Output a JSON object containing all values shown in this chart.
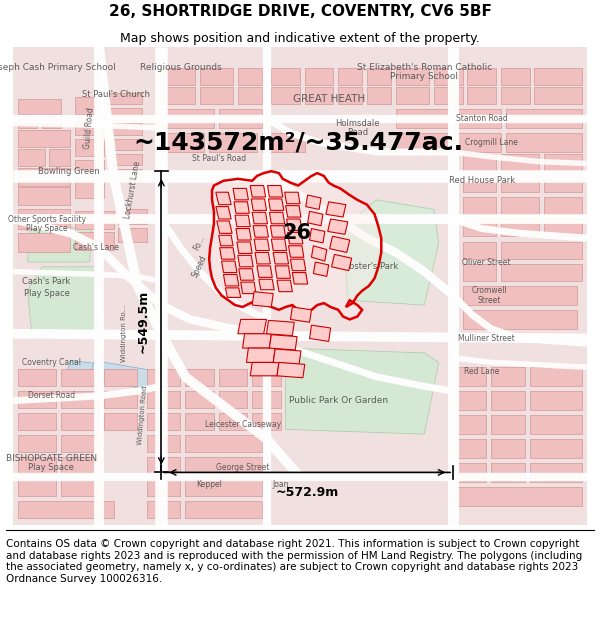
{
  "title": "26, SHORTRIDGE DRIVE, COVENTRY, CV6 5BF",
  "subtitle": "Map shows position and indicative extent of the property.",
  "area_text": "~143572m²/~35.477ac.",
  "label_number": "26",
  "dim_horizontal": "~572.9m",
  "dim_vertical": "~549.5m",
  "footer": "Contains OS data © Crown copyright and database right 2021. This information is subject to Crown copyright and database rights 2023 and is reproduced with the permission of HM Land Registry. The polygons (including the associated geometry, namely x, y co-ordinates) are subject to Crown copyright and database rights 2023 Ordnance Survey 100026316.",
  "map_bg": "#f2e8e8",
  "building_fill": "#f0c8c8",
  "building_edge": "#cc8888",
  "road_fill": "#ffffff",
  "road_edge": "#ddbbbb",
  "green_fill": "#d8ead8",
  "blue_fill": "#ccdde8",
  "red_poly_fill": "none",
  "red_poly_edge": "#dd0000",
  "red_bld_fill": "#ff8888",
  "red_bld_edge": "#cc0000",
  "arrow_color": "#000000",
  "text_color": "#000000",
  "title_fontsize": 11,
  "subtitle_fontsize": 9,
  "area_fontsize": 18,
  "label_fontsize": 15,
  "map_label_fontsize": 7,
  "footer_fontsize": 7.5,
  "dim_fontsize": 9,
  "fig_width": 6.0,
  "fig_height": 6.25,
  "dpi": 100
}
